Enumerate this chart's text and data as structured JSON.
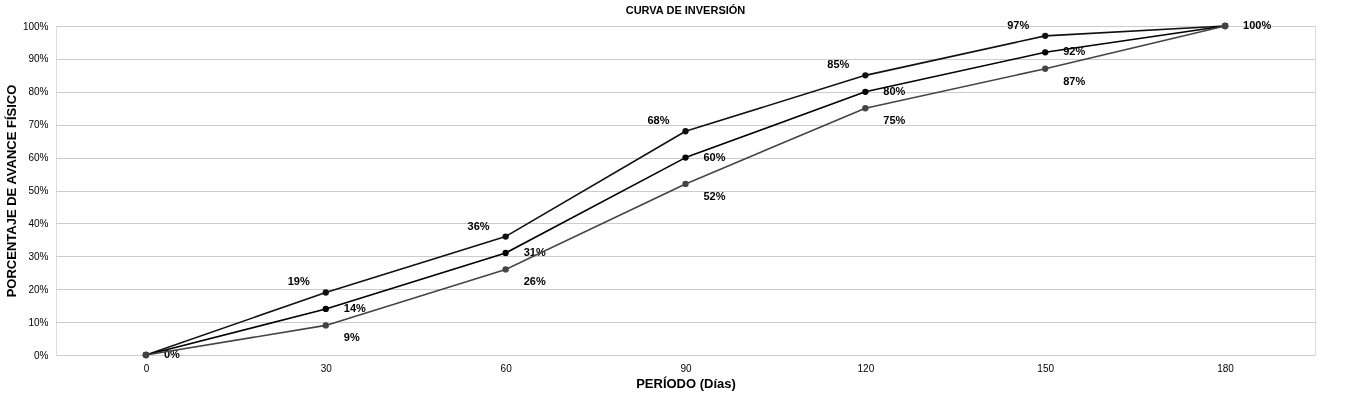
{
  "chart_data": {
    "type": "line",
    "title": "CURVA DE INVERSIÓN",
    "xlabel": "PERÍODO (Días)",
    "ylabel": "PORCENTAJE DE AVANCE FÍSICO",
    "x": [
      0,
      30,
      60,
      90,
      120,
      150,
      180
    ],
    "series": [
      {
        "color": "#111111",
        "values": [
          0,
          19,
          36,
          68,
          85,
          97,
          100
        ],
        "value_labels": [
          null,
          "19%",
          "36%",
          "68%",
          "85%",
          "97%",
          null
        ]
      },
      {
        "color": "#000000",
        "values": [
          0,
          14,
          31,
          60,
          80,
          92,
          100
        ],
        "value_labels": [
          "0%",
          "14%",
          "31%",
          "60%",
          "80%",
          "92%",
          "100%"
        ]
      },
      {
        "color": "#444444",
        "values": [
          0,
          9,
          26,
          52,
          75,
          87,
          100
        ],
        "value_labels": [
          null,
          "9%",
          "26%",
          "52%",
          "75%",
          "87%",
          null
        ]
      }
    ],
    "xlim": [
      -15,
      195
    ],
    "xticks": [
      0,
      30,
      60,
      90,
      120,
      150,
      180
    ],
    "ylim": [
      0,
      100
    ],
    "yticks": [
      {
        "value": 0,
        "label": "0%"
      },
      {
        "value": 10,
        "label": "10%"
      },
      {
        "value": 20,
        "label": "20%"
      },
      {
        "value": 30,
        "label": "30%"
      },
      {
        "value": 40,
        "label": "40%"
      },
      {
        "value": 50,
        "label": "50%"
      },
      {
        "value": 60,
        "label": "60%"
      },
      {
        "value": 70,
        "label": "70%"
      },
      {
        "value": 80,
        "label": "80%"
      },
      {
        "value": 90,
        "label": "90%"
      },
      {
        "value": 100,
        "label": "100%"
      }
    ],
    "grid": "y",
    "marker": "circle",
    "line_style": "solid"
  }
}
